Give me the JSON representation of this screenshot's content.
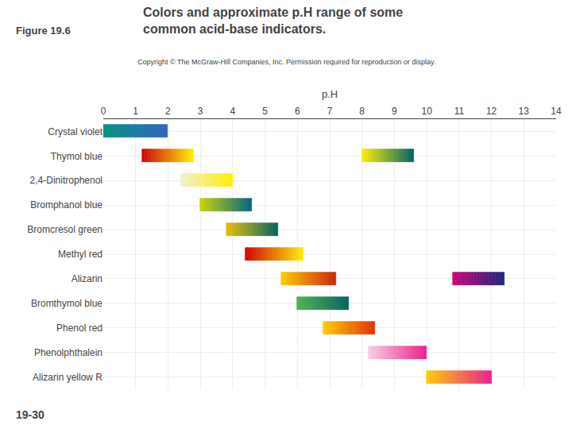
{
  "chart_data": {
    "type": "range_bar",
    "orientation": "horizontal",
    "title": "Colors and approximate p.H range of some\ncommon acid-base indicators.",
    "annotations": [
      "Figure 19.6",
      "Copyright © The McGraw-Hill Companies, Inc. Permission required for reproduction or display.",
      "19-30"
    ],
    "xlabel": "p.H",
    "categories": [
      "Crystal violet",
      "Thymol blue",
      "2,4-Dinitrophenol",
      "Bromphanol blue",
      "Bromcresol green",
      "Methyl red",
      "Alizarin",
      "Bromthymol blue",
      "Phenol red",
      "Phenolphthalein",
      "Alizarin yellow R"
    ],
    "ranges": [
      [
        {
          "start": 0,
          "end": 2,
          "colors": [
            "#009080",
            "#3060c0"
          ]
        }
      ],
      [
        {
          "start": 1.2,
          "end": 2.8,
          "colors": [
            "#cc0000",
            "#ffee00"
          ]
        },
        {
          "start": 8.0,
          "end": 9.6,
          "colors": [
            "#ffee00",
            "#006064"
          ]
        }
      ],
      [
        {
          "start": 2.4,
          "end": 4.0,
          "colors": [
            "#f0f0d0",
            "#ffee00"
          ]
        }
      ],
      [
        {
          "start": 3.0,
          "end": 4.6,
          "colors": [
            "#c8d400",
            "#006080"
          ]
        }
      ],
      [
        {
          "start": 3.8,
          "end": 5.4,
          "colors": [
            "#e8c000",
            "#006060"
          ]
        }
      ],
      [
        {
          "start": 4.4,
          "end": 6.2,
          "colors": [
            "#cc0000",
            "#ffee00"
          ]
        }
      ],
      [
        {
          "start": 5.5,
          "end": 7.2,
          "colors": [
            "#ffcc00",
            "#cc2200"
          ]
        },
        {
          "start": 10.8,
          "end": 12.4,
          "colors": [
            "#cc0077",
            "#1a237e"
          ]
        }
      ],
      [
        {
          "start": 6.0,
          "end": 7.6,
          "colors": [
            "#50b050",
            "#006060"
          ]
        }
      ],
      [
        {
          "start": 6.8,
          "end": 8.4,
          "colors": [
            "#ffcc00",
            "#dd3300"
          ]
        }
      ],
      [
        {
          "start": 8.2,
          "end": 10.0,
          "colors": [
            "#f8d0e0",
            "#e91e8c"
          ]
        }
      ],
      [
        {
          "start": 10.0,
          "end": 12.0,
          "colors": [
            "#ffcc00",
            "#e91e8c"
          ]
        }
      ]
    ],
    "xlim": [
      0,
      14
    ],
    "xticks": [
      0,
      1,
      2,
      3,
      4,
      5,
      6,
      7,
      8,
      9,
      10,
      11,
      12,
      13,
      14
    ],
    "grid": true
  }
}
